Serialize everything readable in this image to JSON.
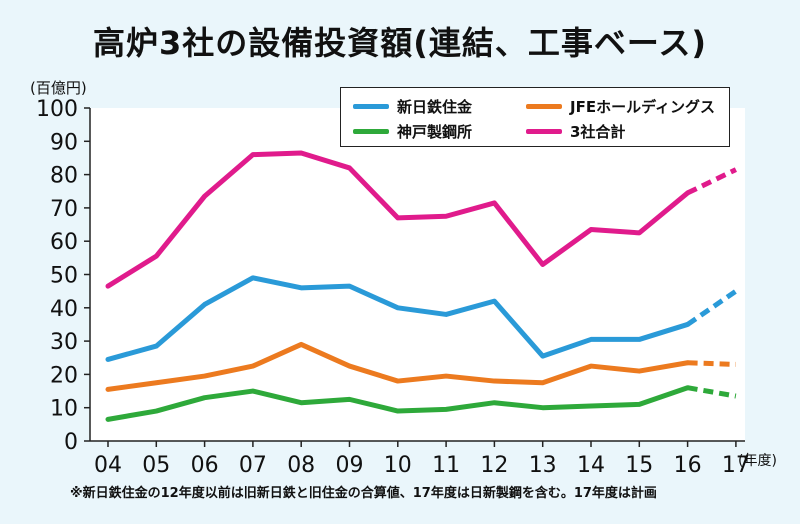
{
  "title": "高炉3社の設備投資額(連結、工事ベース)",
  "unit_label": "(百億円)",
  "x_unit_label": "(年度)",
  "footnote": "※新日鉄住金の12年度以前は旧新日鉄と旧住金の合算値、17年度は日新製鋼を含む。17年度は計画",
  "colors": {
    "background": "#eaf6fb",
    "nippon_steel": "#2a9ad8",
    "jfe": "#ec7a1f",
    "kobe": "#2ea93a",
    "total": "#e01b8c"
  },
  "chart_data": {
    "type": "line",
    "categories": [
      "04",
      "05",
      "06",
      "07",
      "08",
      "09",
      "10",
      "11",
      "12",
      "13",
      "14",
      "15",
      "16",
      "17"
    ],
    "ylim": [
      0,
      100
    ],
    "yticks": [
      "0",
      "10",
      "20",
      "30",
      "40",
      "50",
      "60",
      "70",
      "80",
      "90",
      "100"
    ],
    "grid": false,
    "legend_position": "top-right",
    "projected_from_index": 12,
    "series": [
      {
        "name": "新日鉄住金",
        "color": "#2a9ad8",
        "values": [
          24.5,
          28.5,
          41,
          49,
          46,
          46.5,
          40,
          38,
          42,
          25.5,
          30.5,
          30.5,
          35,
          45
        ]
      },
      {
        "name": "JFEホールディングス",
        "color": "#ec7a1f",
        "values": [
          15.5,
          17.5,
          19.5,
          22.5,
          29,
          22.5,
          18,
          19.5,
          18,
          17.5,
          22.5,
          21,
          23.5,
          23
        ]
      },
      {
        "name": "神戸製鋼所",
        "color": "#2ea93a",
        "values": [
          6.5,
          9,
          13,
          15,
          11.5,
          12.5,
          9,
          9.5,
          11.5,
          10,
          10.5,
          11,
          16,
          13.5
        ]
      },
      {
        "name": "3社合計",
        "color": "#e01b8c",
        "values": [
          46.5,
          55.5,
          73.5,
          86,
          86.5,
          82,
          67,
          67.5,
          71.5,
          53,
          63.5,
          62.5,
          74.5,
          81.5
        ]
      }
    ]
  }
}
